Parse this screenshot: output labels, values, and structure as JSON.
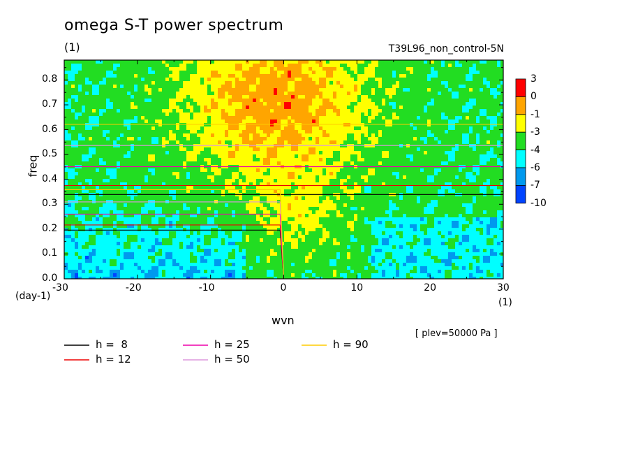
{
  "chart_data": {
    "type": "heatmap",
    "title": "omega S-T power spectrum",
    "subtitle_left": "(1)",
    "subtitle_right": "T39L96_non_control-5N",
    "xlabel": "wvn",
    "ylabel": "freq",
    "x_unit": "(1)",
    "y_unit": "(day-1)",
    "xlim": [
      -30,
      30
    ],
    "ylim": [
      0,
      0.88
    ],
    "x_ticks": [
      -30,
      -20,
      -10,
      0,
      10,
      20,
      30
    ],
    "y_ticks": [
      0.0,
      0.1,
      0.2,
      0.3,
      0.4,
      0.5,
      0.6,
      0.7,
      0.8
    ],
    "annotation": "[ plev=50000 Pa ]",
    "colorbar": {
      "levels": [
        "3",
        "0",
        "-1",
        "-3",
        "-4",
        "-6",
        "-7",
        "-10"
      ],
      "colors": [
        "#ff0000",
        "#ffa500",
        "#ffff00",
        "#22dd22",
        "#00ffff",
        "#0099ee",
        "#0044ff"
      ]
    },
    "dispersion_curves": [
      {
        "label": "h =  8",
        "h": 8,
        "color": "#000000"
      },
      {
        "label": "h = 12",
        "h": 12,
        "color": "#ee0000"
      },
      {
        "label": "h = 25",
        "h": 25,
        "color": "#ee00aa"
      },
      {
        "label": "h = 50",
        "h": 50,
        "color": "#dd99dd"
      },
      {
        "label": "h = 90",
        "h": 90,
        "color": "#ffcc00"
      }
    ]
  }
}
